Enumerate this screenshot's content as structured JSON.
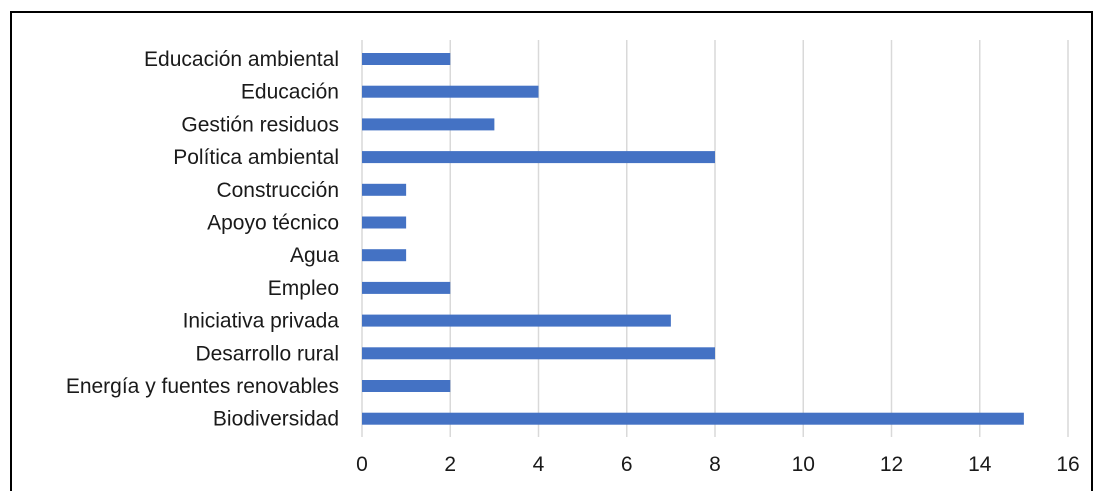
{
  "chart_data": {
    "type": "bar",
    "orientation": "horizontal",
    "categories": [
      "Educación ambiental",
      "Educación",
      "Gestión residuos",
      "Política ambiental",
      "Construcción",
      "Apoyo técnico",
      "Agua",
      "Empleo",
      "Iniciativa privada",
      "Desarrollo rural",
      "Energía y fuentes renovables",
      "Biodiversidad"
    ],
    "values": [
      2,
      4,
      3,
      8,
      1,
      1,
      1,
      2,
      7,
      8,
      2,
      15
    ],
    "xlim": [
      0,
      16
    ],
    "xticks": [
      0,
      2,
      4,
      6,
      8,
      10,
      12,
      14,
      16
    ],
    "xgrid": true,
    "bar_color": "#4472C4",
    "grid_color": "#d9d9d9"
  }
}
